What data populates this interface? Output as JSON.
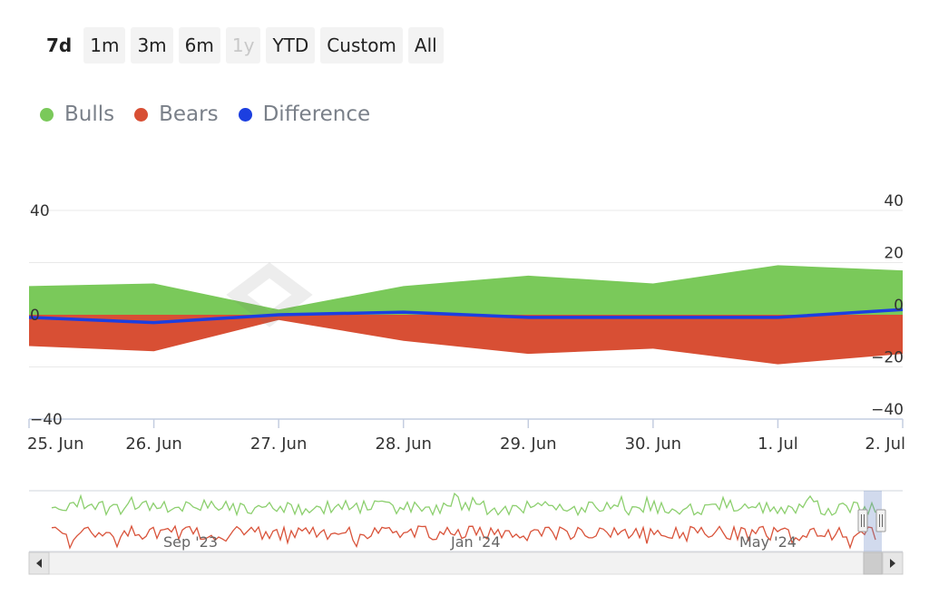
{
  "range_selector": {
    "buttons": [
      {
        "label": "7d",
        "state": "active"
      },
      {
        "label": "1m",
        "state": "normal"
      },
      {
        "label": "3m",
        "state": "normal"
      },
      {
        "label": "6m",
        "state": "normal"
      },
      {
        "label": "1y",
        "state": "disabled"
      },
      {
        "label": "YTD",
        "state": "normal"
      },
      {
        "label": "Custom",
        "state": "normal"
      },
      {
        "label": "All",
        "state": "normal"
      }
    ]
  },
  "colors": {
    "bulls": "#7ac95a",
    "bears": "#d84f34",
    "difference": "#1c3fe0",
    "navigator_bulls": "#8ccf6e",
    "navigator_bears": "#d9533a"
  },
  "chart_data": {
    "type": "area",
    "categories": [
      "25. Jun",
      "26. Jun",
      "27. Jun",
      "28. Jun",
      "29. Jun",
      "30. Jun",
      "1. Jul",
      "2. Jul"
    ],
    "series": [
      {
        "name": "Bulls",
        "type": "area",
        "values": [
          11,
          12,
          2,
          11,
          15,
          12,
          19,
          17
        ]
      },
      {
        "name": "Bears",
        "type": "area",
        "values": [
          -12,
          -14,
          -2,
          -10,
          -15,
          -13,
          -19,
          -15
        ]
      },
      {
        "name": "Difference",
        "type": "line",
        "values": [
          -1,
          -3,
          0,
          1,
          -1,
          -1,
          -1,
          2
        ]
      }
    ],
    "left_axis": {
      "ticks": [
        "40",
        "0",
        "−40"
      ],
      "ylim": [
        -40,
        40
      ]
    },
    "right_axis": {
      "ticks": [
        "40",
        "20",
        "0",
        "−20",
        "−40"
      ],
      "ylim": [
        -40,
        40
      ]
    },
    "legend_position": "top-left",
    "navigator": {
      "labels": [
        "Sep '23",
        "Jan '24",
        "May '24"
      ]
    }
  }
}
